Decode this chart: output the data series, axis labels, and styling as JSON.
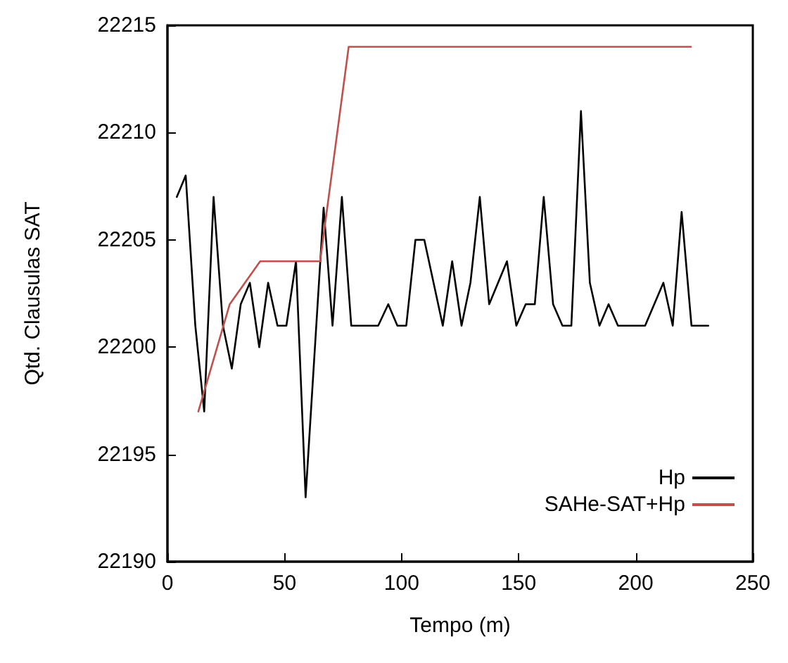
{
  "chart_data": {
    "type": "line",
    "xlabel": "Tempo (m)",
    "ylabel": "Qtd. Clausulas SAT",
    "xlim": [
      0,
      250
    ],
    "xticks": [
      0,
      50,
      100,
      150,
      200,
      250
    ],
    "ylim": [
      22190,
      22215
    ],
    "yticks": [
      22190,
      22195,
      22200,
      22205,
      22210,
      22215
    ],
    "grid": false,
    "legend": "bottom right",
    "marker": "none",
    "line_style": "solid",
    "series": [
      {
        "name": "Hp",
        "color": "#000000",
        "x": [
          4,
          7.8,
          11.9,
          15.7,
          19.7,
          23.7,
          27.5,
          31.3,
          35.2,
          39.2,
          43,
          47,
          50.8,
          54.9,
          59,
          66.7,
          70.5,
          74.5,
          78.5,
          90,
          94.3,
          98.2,
          102,
          105.9,
          109.7,
          117.6,
          121.6,
          125.6,
          129.4,
          133.4,
          137.4,
          145,
          149,
          153,
          156.9,
          160.7,
          164.7,
          168.7,
          172.5,
          176.6,
          180.4,
          184.5,
          188.4,
          192.4,
          204,
          211.8,
          215.8,
          219.6,
          223.8,
          231
        ],
        "values": [
          22207,
          22208,
          22201,
          22197,
          22207,
          22201,
          22199,
          22202,
          22203,
          22200,
          22203,
          22201,
          22201,
          22204,
          22193,
          22206.5,
          22201,
          22207,
          22201,
          22201,
          22202,
          22201,
          22201,
          22205,
          22205,
          22201,
          22204,
          22201,
          22203,
          22207,
          22202,
          22204,
          22201,
          22202,
          22202,
          22207,
          22202,
          22201,
          22201,
          22211,
          22203,
          22201,
          22202,
          22201,
          22201,
          22203,
          22201,
          22206.3,
          22201,
          22201
        ]
      },
      {
        "name": "SAHe-SAT+Hp",
        "color": "#c0504d",
        "x": [
          13.2,
          26.6,
          39.6,
          65.2,
          77.4,
          223.6
        ],
        "values": [
          22197,
          22202,
          22204,
          22204,
          22214,
          22214
        ]
      }
    ]
  }
}
